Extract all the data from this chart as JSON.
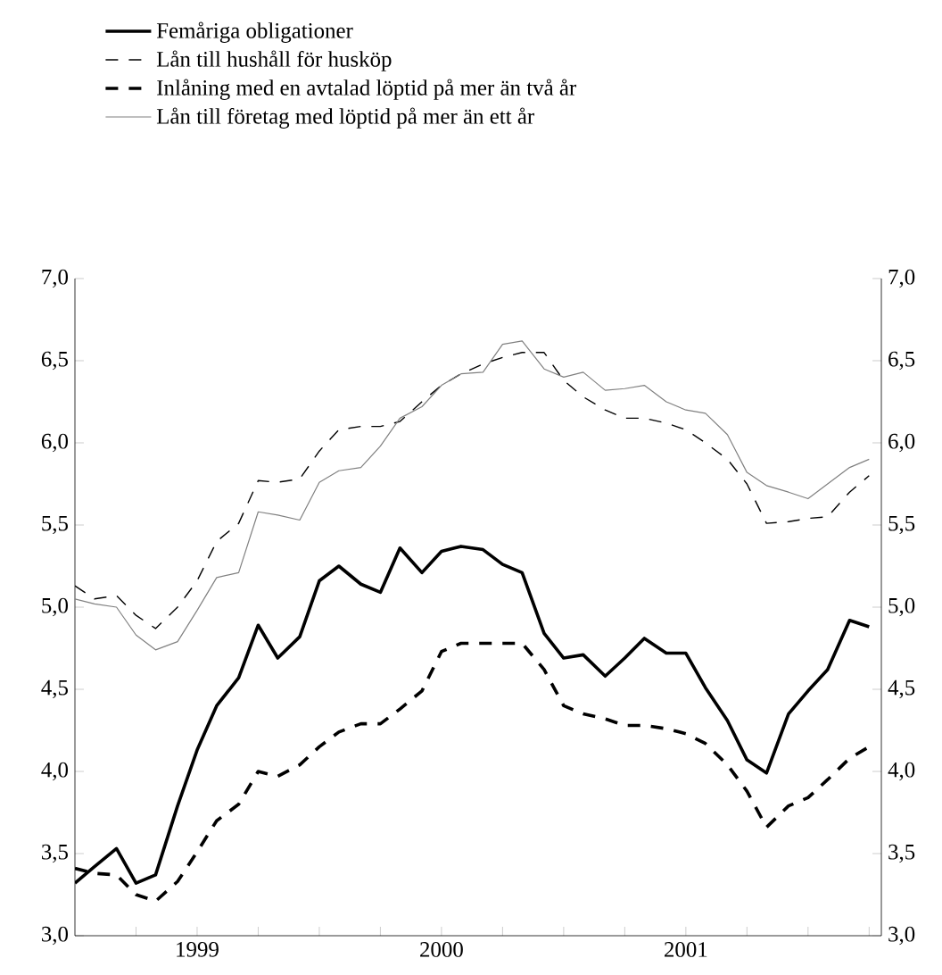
{
  "chart_data": {
    "type": "line",
    "x": [
      "1999-01",
      "1999-02",
      "1999-03",
      "1999-04",
      "1999-05",
      "1999-06",
      "1999-07",
      "1999-08",
      "1999-09",
      "1999-10",
      "1999-11",
      "1999-12",
      "2000-01",
      "2000-02",
      "2000-03",
      "2000-04",
      "2000-05",
      "2000-06",
      "2000-07",
      "2000-08",
      "2000-09",
      "2000-10",
      "2000-11",
      "2000-12",
      "2001-01",
      "2001-02",
      "2001-03",
      "2001-04",
      "2001-05",
      "2001-06",
      "2001-07",
      "2001-08",
      "2001-09",
      "2001-10",
      "2001-11",
      "2001-12",
      "2002-01",
      "2002-02",
      "2002-03",
      "2002-04"
    ],
    "series": [
      {
        "name": "Femåriga obligationer",
        "color": "#000000",
        "line_style": "solid",
        "values": [
          3.32,
          3.42,
          3.53,
          3.32,
          3.37,
          3.79,
          4.13,
          4.4,
          4.57,
          4.89,
          4.69,
          4.82,
          5.16,
          5.25,
          5.14,
          5.09,
          5.36,
          5.21,
          5.34,
          5.37,
          5.35,
          5.26,
          5.21,
          4.84,
          4.69,
          4.71,
          4.58,
          4.69,
          4.81,
          4.72,
          4.72,
          4.51,
          4.31,
          4.07,
          3.99,
          4.35,
          4.49,
          4.62,
          4.92,
          4.88
        ]
      },
      {
        "name": "Lån till hushåll för husköp",
        "color": "#000000",
        "line_style": "dashed",
        "values": [
          5.13,
          5.05,
          5.07,
          4.95,
          4.87,
          5.0,
          5.16,
          5.4,
          5.51,
          5.77,
          5.76,
          5.78,
          5.95,
          6.08,
          6.1,
          6.1,
          6.13,
          6.25,
          6.35,
          6.42,
          6.48,
          6.52,
          6.55,
          6.55,
          6.38,
          6.28,
          6.2,
          6.15,
          6.15,
          6.12,
          6.08,
          6.0,
          5.9,
          5.75,
          5.51,
          5.52,
          5.54,
          5.55,
          5.7,
          5.8
        ]
      },
      {
        "name": "Inlåning med en avtalad löptid på mer än två år",
        "color": "#000000",
        "line_style": "dashed",
        "values": [
          3.41,
          3.38,
          3.37,
          3.25,
          3.21,
          3.33,
          3.51,
          3.7,
          3.8,
          4.0,
          3.97,
          4.04,
          4.15,
          4.24,
          4.29,
          4.29,
          4.38,
          4.49,
          4.73,
          4.78,
          4.78,
          4.78,
          4.78,
          4.62,
          4.4,
          4.35,
          4.32,
          4.28,
          4.28,
          4.26,
          4.23,
          4.17,
          4.04,
          3.88,
          3.66,
          3.79,
          3.84,
          3.95,
          4.08,
          4.15
        ]
      },
      {
        "name": "Lån till företag med löptid på mer än ett år",
        "color": "#808080",
        "line_style": "solid",
        "values": [
          5.05,
          5.02,
          5.0,
          4.83,
          4.74,
          4.79,
          4.98,
          5.18,
          5.21,
          5.58,
          5.56,
          5.53,
          5.76,
          5.83,
          5.85,
          5.98,
          6.15,
          6.22,
          6.35,
          6.42,
          6.43,
          6.6,
          6.62,
          6.45,
          6.4,
          6.43,
          6.32,
          6.33,
          6.35,
          6.25,
          6.2,
          6.18,
          6.05,
          5.82,
          5.74,
          5.7,
          5.66,
          5.75,
          5.85,
          5.9
        ]
      }
    ],
    "xlim": [
      "1999-01",
      "2002-04-20"
    ],
    "xticks": [
      {
        "value": "1999-04",
        "label": null
      },
      {
        "value": "1999-07",
        "label": "1999"
      },
      {
        "value": "1999-10",
        "label": null
      },
      {
        "value": "2000-01",
        "label": null
      },
      {
        "value": "2000-04",
        "label": null
      },
      {
        "value": "2000-07",
        "label": "2000"
      },
      {
        "value": "2000-10",
        "label": null
      },
      {
        "value": "2001-01",
        "label": null
      },
      {
        "value": "2001-04",
        "label": null
      },
      {
        "value": "2001-07",
        "label": "2001"
      },
      {
        "value": "2001-10",
        "label": null
      },
      {
        "value": "2002-01",
        "label": null
      },
      {
        "value": "2002-04",
        "label": null
      }
    ],
    "ylim": [
      3,
      7
    ],
    "yticks": [
      {
        "value": 3,
        "label": "3,0"
      },
      {
        "value": 3.5,
        "label": "3,5"
      },
      {
        "value": 4,
        "label": "4,0"
      },
      {
        "value": 4.5,
        "label": "4,5"
      },
      {
        "value": 5,
        "label": "5,0"
      },
      {
        "value": 5.5,
        "label": "5,5"
      },
      {
        "value": 6,
        "label": "6,0"
      },
      {
        "value": 6.5,
        "label": "6,5"
      },
      {
        "value": 7,
        "label": "7,0"
      }
    ],
    "y2lim": [
      3,
      7
    ],
    "y2ticks": [
      {
        "value": 3,
        "label": "3,0"
      },
      {
        "value": 3.5,
        "label": "3,5"
      },
      {
        "value": 4,
        "label": "4,0"
      },
      {
        "value": 4.5,
        "label": "4,5"
      },
      {
        "value": 5,
        "label": "5,0"
      },
      {
        "value": 5.5,
        "label": "5,5"
      },
      {
        "value": 6,
        "label": "6,0"
      },
      {
        "value": 6.5,
        "label": "6,5"
      },
      {
        "value": 7,
        "label": "7,0"
      }
    ],
    "legend": "top left"
  }
}
